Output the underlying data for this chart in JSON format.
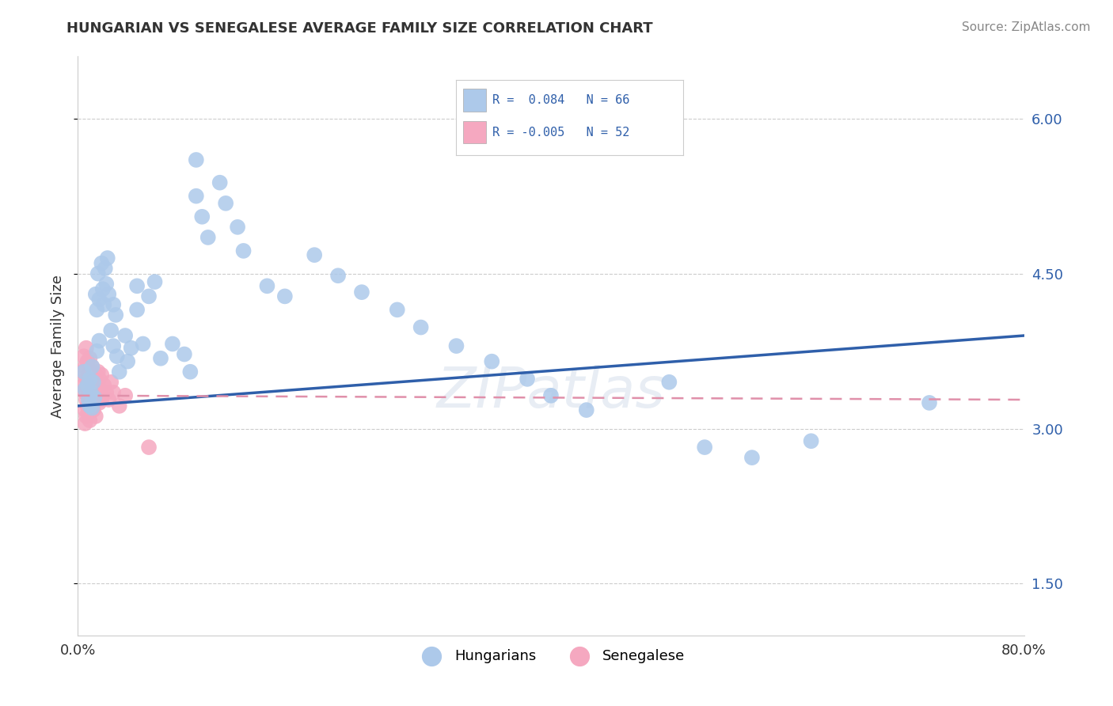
{
  "title": "HUNGARIAN VS SENEGALESE AVERAGE FAMILY SIZE CORRELATION CHART",
  "source": "Source: ZipAtlas.com",
  "ylabel": "Average Family Size",
  "xlim": [
    0.0,
    0.8
  ],
  "ylim": [
    1.0,
    6.6
  ],
  "yticks": [
    1.5,
    3.0,
    4.5,
    6.0
  ],
  "hungarian_color": "#adc9ea",
  "senegalese_color": "#f5a8c0",
  "hungarian_line_color": "#2f5faa",
  "senegalese_line_color": "#e8a0b8",
  "trend_line_hungarian": {
    "x0": 0.0,
    "y0": 3.22,
    "x1": 0.8,
    "y1": 3.9
  },
  "trend_line_senegalese": {
    "x0": 0.0,
    "y0": 3.32,
    "x1": 0.8,
    "y1": 3.28
  },
  "watermark": "ZIPatlas",
  "hungarian_points": [
    [
      0.005,
      3.55
    ],
    [
      0.006,
      3.38
    ],
    [
      0.008,
      3.42
    ],
    [
      0.009,
      3.28
    ],
    [
      0.01,
      3.48
    ],
    [
      0.01,
      3.22
    ],
    [
      0.011,
      3.35
    ],
    [
      0.012,
      3.6
    ],
    [
      0.012,
      3.2
    ],
    [
      0.013,
      3.45
    ],
    [
      0.014,
      3.3
    ],
    [
      0.015,
      4.3
    ],
    [
      0.016,
      4.15
    ],
    [
      0.016,
      3.75
    ],
    [
      0.017,
      4.5
    ],
    [
      0.018,
      4.25
    ],
    [
      0.018,
      3.85
    ],
    [
      0.02,
      4.6
    ],
    [
      0.021,
      4.35
    ],
    [
      0.022,
      4.2
    ],
    [
      0.023,
      4.55
    ],
    [
      0.024,
      4.4
    ],
    [
      0.025,
      4.65
    ],
    [
      0.026,
      4.3
    ],
    [
      0.028,
      3.95
    ],
    [
      0.03,
      4.2
    ],
    [
      0.03,
      3.8
    ],
    [
      0.032,
      4.1
    ],
    [
      0.033,
      3.7
    ],
    [
      0.035,
      3.55
    ],
    [
      0.04,
      3.9
    ],
    [
      0.042,
      3.65
    ],
    [
      0.045,
      3.78
    ],
    [
      0.05,
      4.38
    ],
    [
      0.05,
      4.15
    ],
    [
      0.055,
      3.82
    ],
    [
      0.06,
      4.28
    ],
    [
      0.065,
      4.42
    ],
    [
      0.07,
      3.68
    ],
    [
      0.08,
      3.82
    ],
    [
      0.09,
      3.72
    ],
    [
      0.095,
      3.55
    ],
    [
      0.1,
      5.6
    ],
    [
      0.1,
      5.25
    ],
    [
      0.105,
      5.05
    ],
    [
      0.11,
      4.85
    ],
    [
      0.12,
      5.38
    ],
    [
      0.125,
      5.18
    ],
    [
      0.135,
      4.95
    ],
    [
      0.14,
      4.72
    ],
    [
      0.16,
      4.38
    ],
    [
      0.175,
      4.28
    ],
    [
      0.2,
      4.68
    ],
    [
      0.22,
      4.48
    ],
    [
      0.24,
      4.32
    ],
    [
      0.27,
      4.15
    ],
    [
      0.29,
      3.98
    ],
    [
      0.32,
      3.8
    ],
    [
      0.35,
      3.65
    ],
    [
      0.38,
      3.48
    ],
    [
      0.4,
      3.32
    ],
    [
      0.43,
      3.18
    ],
    [
      0.5,
      3.45
    ],
    [
      0.53,
      2.82
    ],
    [
      0.57,
      2.72
    ],
    [
      0.62,
      2.88
    ],
    [
      0.72,
      3.25
    ]
  ],
  "senegalese_points": [
    [
      0.004,
      3.55
    ],
    [
      0.005,
      3.7
    ],
    [
      0.005,
      3.42
    ],
    [
      0.006,
      3.6
    ],
    [
      0.006,
      3.35
    ],
    [
      0.006,
      3.18
    ],
    [
      0.006,
      3.05
    ],
    [
      0.007,
      3.78
    ],
    [
      0.007,
      3.48
    ],
    [
      0.007,
      3.28
    ],
    [
      0.007,
      3.12
    ],
    [
      0.008,
      3.65
    ],
    [
      0.008,
      3.42
    ],
    [
      0.008,
      3.22
    ],
    [
      0.009,
      3.52
    ],
    [
      0.009,
      3.32
    ],
    [
      0.009,
      3.15
    ],
    [
      0.01,
      3.68
    ],
    [
      0.01,
      3.48
    ],
    [
      0.01,
      3.25
    ],
    [
      0.01,
      3.08
    ],
    [
      0.011,
      3.55
    ],
    [
      0.011,
      3.35
    ],
    [
      0.011,
      3.18
    ],
    [
      0.012,
      3.6
    ],
    [
      0.012,
      3.38
    ],
    [
      0.012,
      3.22
    ],
    [
      0.013,
      3.55
    ],
    [
      0.013,
      3.35
    ],
    [
      0.013,
      3.18
    ],
    [
      0.014,
      3.48
    ],
    [
      0.014,
      3.28
    ],
    [
      0.015,
      3.52
    ],
    [
      0.015,
      3.32
    ],
    [
      0.015,
      3.12
    ],
    [
      0.016,
      3.45
    ],
    [
      0.016,
      3.28
    ],
    [
      0.017,
      3.55
    ],
    [
      0.017,
      3.35
    ],
    [
      0.018,
      3.48
    ],
    [
      0.018,
      3.25
    ],
    [
      0.019,
      3.38
    ],
    [
      0.02,
      3.52
    ],
    [
      0.02,
      3.28
    ],
    [
      0.022,
      3.42
    ],
    [
      0.024,
      3.35
    ],
    [
      0.026,
      3.28
    ],
    [
      0.028,
      3.45
    ],
    [
      0.03,
      3.35
    ],
    [
      0.035,
      3.22
    ],
    [
      0.04,
      3.32
    ],
    [
      0.06,
      2.82
    ]
  ]
}
